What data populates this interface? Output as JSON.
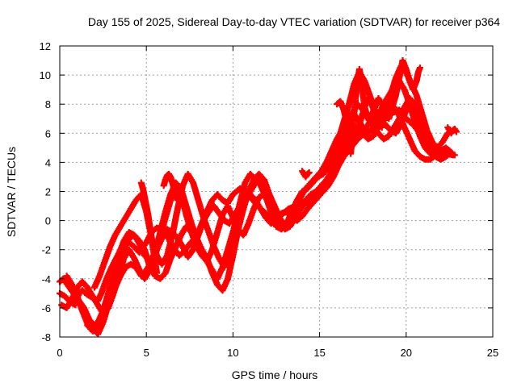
{
  "chart_data": {
    "type": "scatter",
    "title": "Day 155 of 2025, Sidereal Day-to-day VTEC variation (SDTVAR) for receiver p364",
    "xlabel": "GPS time / hours",
    "ylabel": "SDTVAR / TECUs",
    "xlim": [
      0,
      25
    ],
    "ylim": [
      -8,
      12
    ],
    "xticks": [
      0,
      5,
      10,
      15,
      20,
      25
    ],
    "yticks": [
      -8,
      -6,
      -4,
      -2,
      0,
      2,
      4,
      6,
      8,
      10,
      12
    ],
    "grid": true,
    "marker": "plus",
    "color": "#ff0000",
    "series": [
      {
        "x": [
          0.0,
          0.3,
          0.6,
          0.9,
          1.1,
          1.3,
          1.6,
          1.9,
          2.2,
          2.4,
          2.7,
          3.0,
          3.3,
          3.6,
          4.0,
          4.3,
          4.6,
          5.0,
          5.3,
          5.6,
          5.9,
          6.2,
          6.5,
          6.9,
          7.2,
          7.5,
          7.8,
          8.1,
          8.4,
          8.8,
          9.1,
          9.4,
          9.7,
          10.0,
          10.4,
          10.7,
          11.0,
          11.3,
          11.6,
          12.0,
          12.4,
          12.8,
          13.2,
          13.6,
          14.0,
          14.4,
          14.8,
          15.2,
          15.6,
          16.0,
          16.4,
          16.8,
          17.2,
          17.6,
          18.0,
          18.4,
          18.8,
          19.2,
          19.6,
          20.0,
          20.4,
          20.8,
          21.2,
          21.6,
          22.0,
          22.4,
          22.8
        ],
        "y": [
          -5.0,
          -5.2,
          -5.6,
          -5.8,
          -5.0,
          -4.8,
          -5.1,
          -5.3,
          -5.5,
          -5.0,
          -4.0,
          -3.2,
          -2.5,
          -1.8,
          -1.5,
          -1.8,
          -2.2,
          -1.5,
          -0.8,
          -0.5,
          -0.6,
          -1.0,
          -1.8,
          -2.4,
          -2.1,
          -1.6,
          -1.2,
          -0.5,
          0.4,
          1.4,
          1.8,
          1.4,
          1.2,
          1.8,
          2.2,
          2.0,
          1.6,
          1.2,
          0.8,
          0.4,
          0.2,
          0.4,
          0.8,
          1.0,
          1.2,
          1.6,
          1.8,
          2.2,
          2.8,
          3.6,
          4.4,
          5.0,
          5.6,
          6.0,
          6.2,
          6.6,
          7.0,
          7.4,
          7.6,
          7.0,
          6.6,
          6.0,
          5.2,
          4.8,
          4.6,
          4.7,
          4.5
        ]
      },
      {
        "x": [
          0.0,
          0.2,
          0.5,
          0.8,
          1.1,
          1.4,
          1.7,
          2.0,
          2.3,
          2.6,
          2.9,
          3.2,
          3.5,
          3.8,
          4.1,
          4.4,
          4.7,
          5.0,
          5.3,
          5.6,
          5.9,
          6.2,
          6.5,
          6.8,
          7.1,
          7.4,
          7.7,
          8.0,
          8.3,
          8.6,
          8.9,
          9.2,
          9.5,
          9.8,
          10.1,
          10.4,
          10.7,
          11.0,
          11.3,
          11.6,
          11.9,
          12.2,
          12.5,
          12.8,
          13.1,
          13.4,
          13.7,
          14.0,
          14.3,
          14.6,
          14.9,
          15.2,
          15.5,
          15.8,
          16.1,
          16.4,
          16.7,
          17.0,
          17.3,
          17.6,
          17.9,
          18.2,
          18.5,
          18.8,
          19.1,
          19.4,
          19.7,
          20.0,
          20.3,
          20.6,
          20.9,
          21.2,
          21.5,
          21.8,
          22.1,
          22.4,
          22.7
        ],
        "y": [
          -4.2,
          -4.0,
          -4.5,
          -5.0,
          -5.5,
          -6.0,
          -6.8,
          -7.2,
          -7.0,
          -6.4,
          -5.6,
          -4.6,
          -3.8,
          -3.2,
          -3.0,
          -3.2,
          -3.8,
          -3.4,
          -2.8,
          -2.0,
          -1.2,
          -0.6,
          -0.8,
          -1.2,
          -1.8,
          -2.5,
          -2.0,
          -1.0,
          0.0,
          0.6,
          1.0,
          0.5,
          0.0,
          -0.2,
          0.4,
          1.0,
          1.5,
          1.8,
          1.4,
          0.8,
          0.2,
          -0.2,
          0.0,
          0.5,
          0.6,
          0.2,
          0.0,
          0.3,
          0.8,
          1.2,
          1.6,
          2.0,
          2.4,
          3.0,
          3.8,
          4.5,
          5.2,
          5.6,
          5.8,
          6.2,
          6.8,
          7.2,
          7.0,
          6.6,
          6.2,
          6.0,
          6.6,
          7.6,
          8.0,
          7.4,
          6.6,
          5.6,
          5.0,
          4.6,
          4.5,
          4.6,
          4.5
        ]
      },
      {
        "x": [
          0.4,
          0.7,
          1.0,
          1.3,
          1.6,
          1.9,
          2.2,
          2.5,
          2.8,
          3.1,
          3.4,
          3.7,
          4.0,
          4.3,
          4.6,
          4.9,
          5.2,
          5.5,
          5.8,
          6.1,
          6.4,
          6.7,
          7.0,
          7.3,
          7.6,
          7.9,
          8.2,
          8.5,
          8.8,
          9.1,
          9.4,
          9.7,
          10.0,
          10.3,
          10.6,
          10.9,
          11.2,
          11.5,
          11.8,
          12.1,
          12.4,
          12.7,
          13.0,
          13.3,
          13.6,
          13.9,
          14.2,
          14.5,
          14.8,
          15.1,
          15.4,
          15.7,
          16.0,
          16.3,
          16.6,
          16.9,
          17.2,
          17.5,
          17.8,
          18.1,
          18.4,
          18.7,
          19.0,
          19.3,
          19.6,
          19.9,
          20.2,
          20.5,
          20.8,
          21.1,
          21.4,
          21.7,
          22.0,
          22.3,
          22.6
        ],
        "y": [
          -3.8,
          -4.4,
          -5.2,
          -6.2,
          -7.1,
          -7.4,
          -7.8,
          -7.0,
          -5.8,
          -4.4,
          -3.2,
          -2.0,
          -1.2,
          -1.0,
          -1.4,
          -2.0,
          -3.2,
          -3.8,
          -4.0,
          -3.6,
          -2.6,
          -1.8,
          -1.0,
          -0.4,
          -0.8,
          -1.4,
          -2.2,
          -2.8,
          -3.4,
          -4.0,
          -3.2,
          -2.0,
          -0.8,
          0.6,
          1.4,
          1.8,
          2.4,
          2.8,
          2.4,
          1.8,
          1.0,
          0.2,
          -0.4,
          -0.2,
          0.4,
          1.0,
          1.4,
          1.8,
          2.0,
          2.4,
          2.8,
          3.4,
          4.0,
          5.0,
          6.2,
          7.4,
          8.0,
          7.6,
          7.0,
          6.4,
          6.0,
          5.6,
          5.8,
          6.4,
          7.0,
          7.8,
          8.4,
          8.0,
          7.0,
          6.0,
          5.0,
          4.4,
          4.2,
          4.4,
          4.7
        ]
      },
      {
        "x": [
          2.0,
          2.3,
          2.6,
          2.9,
          3.2,
          3.5,
          3.8,
          4.1,
          4.4,
          4.7,
          5.0,
          5.3,
          5.6,
          5.9,
          6.2,
          6.5,
          6.8,
          7.1,
          7.4,
          7.7,
          8.0,
          8.3,
          8.6,
          8.9,
          9.2,
          9.5,
          9.8,
          10.1,
          10.4,
          10.7,
          11.0,
          11.3,
          11.6,
          11.9,
          12.2,
          12.5,
          12.8,
          13.1,
          13.4,
          13.7,
          14.0,
          14.3,
          14.6,
          14.9,
          15.2,
          15.5,
          15.8,
          16.1,
          16.4,
          16.7,
          17.0,
          17.3,
          17.6,
          17.9,
          18.2,
          18.5,
          18.8,
          19.1,
          19.4,
          19.7,
          20.0,
          20.3,
          20.6,
          20.9,
          21.2,
          21.5,
          21.8,
          22.1,
          22.4,
          22.7
        ],
        "y": [
          -4.6,
          -3.8,
          -2.8,
          -1.8,
          -1.0,
          -0.4,
          0.2,
          0.8,
          1.4,
          1.8,
          0.6,
          -1.2,
          -2.4,
          -3.0,
          -2.4,
          -1.0,
          0.8,
          2.4,
          3.2,
          2.6,
          1.4,
          0.2,
          -0.8,
          -1.8,
          -2.6,
          -3.2,
          -2.2,
          -0.6,
          1.2,
          2.6,
          3.2,
          2.8,
          2.4,
          1.6,
          0.6,
          -0.4,
          -0.6,
          -0.2,
          0.6,
          1.4,
          2.0,
          2.2,
          2.6,
          3.0,
          3.2,
          3.6,
          4.4,
          5.6,
          6.8,
          8.0,
          9.4,
          10.2,
          9.6,
          8.6,
          7.6,
          7.0,
          7.6,
          8.6,
          9.8,
          10.6,
          10.2,
          9.4,
          8.6,
          7.4,
          6.2,
          5.4,
          5.0,
          5.4,
          6.0,
          6.2
        ]
      },
      {
        "x": [
          1.6,
          1.9,
          2.2,
          2.5,
          2.8,
          3.1,
          3.4,
          3.7,
          4.0,
          4.3,
          4.6,
          4.9,
          5.2,
          5.5,
          5.8,
          6.1,
          6.4,
          6.7,
          7.0,
          7.3,
          7.6,
          7.9,
          8.2,
          8.5,
          8.8,
          9.1,
          9.4,
          9.7,
          10.0,
          10.3,
          10.6,
          10.9,
          11.2,
          11.5,
          11.8,
          12.1,
          12.4,
          12.7,
          13.0,
          13.3,
          13.6,
          13.9,
          14.2,
          14.5,
          14.8,
          15.1,
          15.4,
          15.7,
          16.0,
          16.3,
          16.6,
          16.9,
          17.2,
          17.5,
          17.8,
          18.1,
          18.4,
          18.7,
          19.0,
          19.3,
          19.6,
          19.9,
          20.2,
          20.5,
          20.8,
          21.1,
          21.4,
          21.7,
          22.0,
          22.3
        ],
        "y": [
          -7.2,
          -7.6,
          -7.0,
          -6.2,
          -5.0,
          -3.6,
          -2.4,
          -1.4,
          -0.8,
          -1.0,
          -1.6,
          -2.4,
          -2.8,
          -2.2,
          -0.8,
          0.6,
          1.8,
          2.6,
          2.2,
          1.0,
          -0.2,
          -1.2,
          -2.0,
          -2.6,
          -3.6,
          -4.4,
          -4.8,
          -4.0,
          -2.4,
          -0.6,
          0.8,
          2.0,
          2.8,
          3.2,
          2.8,
          1.8,
          0.8,
          0.0,
          -0.4,
          0.2,
          0.8,
          1.6,
          2.2,
          2.6,
          3.0,
          3.4,
          4.0,
          4.8,
          5.6,
          6.2,
          6.8,
          7.4,
          7.0,
          6.4,
          6.0,
          6.4,
          7.2,
          8.0,
          8.6,
          9.2,
          9.6,
          9.0,
          8.0,
          6.8,
          5.8,
          5.0,
          4.6,
          4.4,
          4.5,
          4.6
        ]
      },
      {
        "x": [
          0.1,
          0.4,
          0.7,
          1.0,
          1.3,
          1.6,
          1.9,
          2.2,
          2.5,
          2.8,
          3.1,
          3.4,
          3.7,
          4.0,
          4.3,
          4.6,
          4.9,
          5.2,
          5.5,
          5.8,
          6.1,
          6.4,
          6.7,
          7.0,
          7.3,
          7.6,
          7.9,
          8.2,
          8.5,
          8.8,
          9.1,
          9.4,
          9.7,
          10.0,
          10.3,
          10.6,
          10.9,
          11.2,
          11.5,
          11.8,
          12.1,
          12.4,
          12.7,
          13.0,
          13.3,
          13.6,
          13.9,
          14.2,
          14.5,
          14.8,
          15.1,
          15.4,
          15.7,
          16.0,
          16.3,
          16.6,
          16.9,
          17.2,
          17.5,
          17.8,
          18.1,
          18.4,
          18.7,
          19.0,
          19.3,
          19.6,
          19.9,
          20.2,
          20.5,
          20.8,
          21.1,
          21.4,
          21.7,
          22.0,
          22.3,
          22.6
        ],
        "y": [
          -5.8,
          -6.0,
          -5.4,
          -4.6,
          -4.2,
          -4.6,
          -5.2,
          -5.8,
          -6.4,
          -6.0,
          -5.0,
          -3.8,
          -2.6,
          -2.0,
          -2.6,
          -3.4,
          -4.0,
          -3.4,
          -2.4,
          -1.2,
          0.2,
          1.4,
          2.2,
          1.8,
          0.4,
          -0.8,
          -1.8,
          -2.4,
          -2.8,
          -2.0,
          -0.8,
          0.4,
          1.0,
          0.2,
          -0.6,
          -1.0,
          -0.2,
          0.8,
          1.6,
          1.8,
          1.4,
          0.8,
          0.0,
          -0.6,
          -0.4,
          0.2,
          0.8,
          1.2,
          1.4,
          1.6,
          2.0,
          2.6,
          3.4,
          4.2,
          4.8,
          5.4,
          6.0,
          6.4,
          6.0,
          5.6,
          5.8,
          6.4,
          7.0,
          7.6,
          7.8,
          7.2,
          6.4,
          5.6,
          4.8,
          4.4,
          4.2,
          4.2,
          4.5,
          4.8,
          5.0,
          4.7
        ]
      },
      {
        "x": [
          16.8,
          16.9,
          17.0,
          17.1,
          17.2,
          17.3,
          17.4,
          17.5,
          17.6,
          17.8,
          18.0,
          18.2,
          18.4,
          18.6,
          18.8,
          19.0,
          19.2,
          19.4,
          19.6,
          19.8,
          20.0,
          20.2,
          20.4,
          20.6,
          20.7,
          20.8
        ],
        "y": [
          4.6,
          6.0,
          7.4,
          8.6,
          9.6,
          10.4,
          9.8,
          8.8,
          7.8,
          7.0,
          7.2,
          7.8,
          8.4,
          8.0,
          7.2,
          7.0,
          7.8,
          8.6,
          9.8,
          11.0,
          10.4,
          9.6,
          9.0,
          9.6,
          10.2,
          10.5
        ]
      },
      {
        "x": [
          16.0,
          16.2,
          16.4,
          16.6,
          16.8,
          17.0,
          17.2,
          17.4,
          17.6,
          17.8,
          18.0,
          18.2,
          18.4,
          18.6
        ],
        "y": [
          8.0,
          8.2,
          7.6,
          6.6,
          5.8,
          5.6,
          6.2,
          7.0,
          7.8,
          8.4,
          8.0,
          7.4,
          6.8,
          6.4
        ]
      },
      {
        "x": [
          22.4,
          22.5,
          22.6,
          22.7,
          22.8,
          22.9
        ],
        "y": [
          6.4,
          6.2,
          6.0,
          6.2,
          6.3,
          6.1
        ]
      },
      {
        "x": [
          14.0,
          14.1,
          14.2,
          14.3,
          14.4
        ],
        "y": [
          3.4,
          3.2,
          3.0,
          3.2,
          3.3
        ]
      },
      {
        "x": [
          4.7,
          4.8,
          4.9,
          5.0,
          5.1,
          5.2,
          5.3,
          5.4,
          5.5,
          5.6
        ],
        "y": [
          2.6,
          2.2,
          1.6,
          1.0,
          0.4,
          -0.4,
          -1.2,
          -2.0,
          -2.8,
          -3.6
        ]
      },
      {
        "x": [
          6.0,
          6.1,
          6.2,
          6.3,
          6.4,
          6.5,
          6.6,
          6.7,
          6.8
        ],
        "y": [
          2.4,
          2.8,
          3.1,
          3.2,
          3.0,
          2.6,
          2.2,
          1.8,
          1.4
        ]
      }
    ]
  }
}
